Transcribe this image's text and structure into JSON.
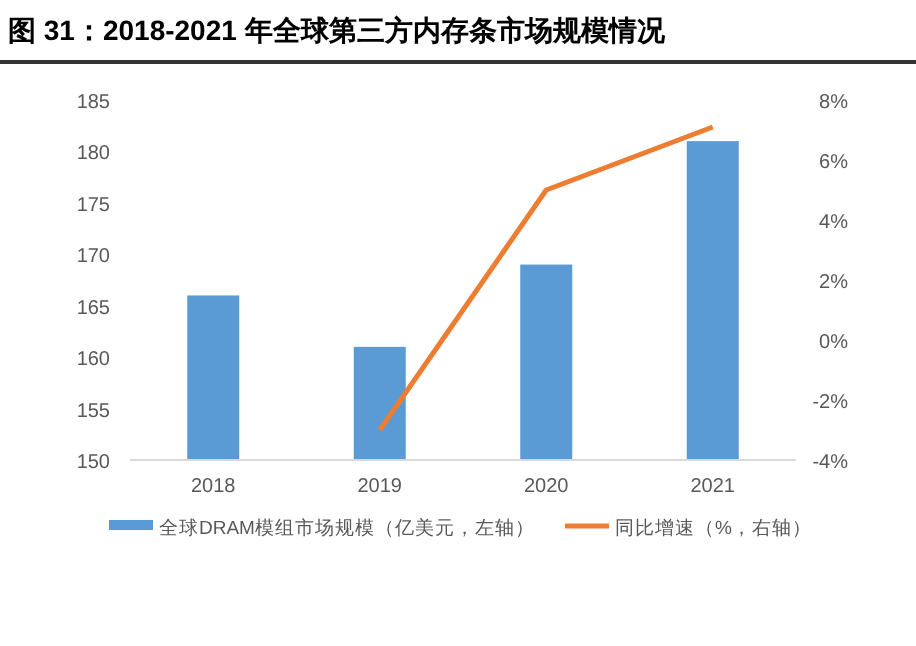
{
  "chart_data": {
    "type": "bar",
    "title": "图 31：2018-2021 年全球第三方内存条市场规模情况",
    "categories": [
      "2018",
      "2019",
      "2020",
      "2021"
    ],
    "series": [
      {
        "name": "全球DRAM模组市场规模（亿美元，左轴）",
        "color": "#5b9bd5",
        "values": [
          166,
          161,
          169,
          181
        ]
      },
      {
        "name": "同比增速（%，右轴）",
        "type": "line",
        "axis": "y2",
        "color": "#ed7d31",
        "values": [
          null,
          -3,
          5.0,
          7.1
        ]
      }
    ],
    "ylim": [
      150,
      185
    ],
    "yticks": [
      150,
      155,
      160,
      165,
      170,
      175,
      180,
      185
    ],
    "y2lim": [
      -4,
      8
    ],
    "y2ticks": [
      {
        "value": -4,
        "label": "-4%"
      },
      {
        "value": -2,
        "label": "-2%"
      },
      {
        "value": 0,
        "label": "0%"
      },
      {
        "value": 2,
        "label": "2%"
      },
      {
        "value": 4,
        "label": "4%"
      },
      {
        "value": 6,
        "label": "6%"
      },
      {
        "value": 8,
        "label": "8%"
      }
    ],
    "grid": false,
    "legend": "bottom"
  }
}
